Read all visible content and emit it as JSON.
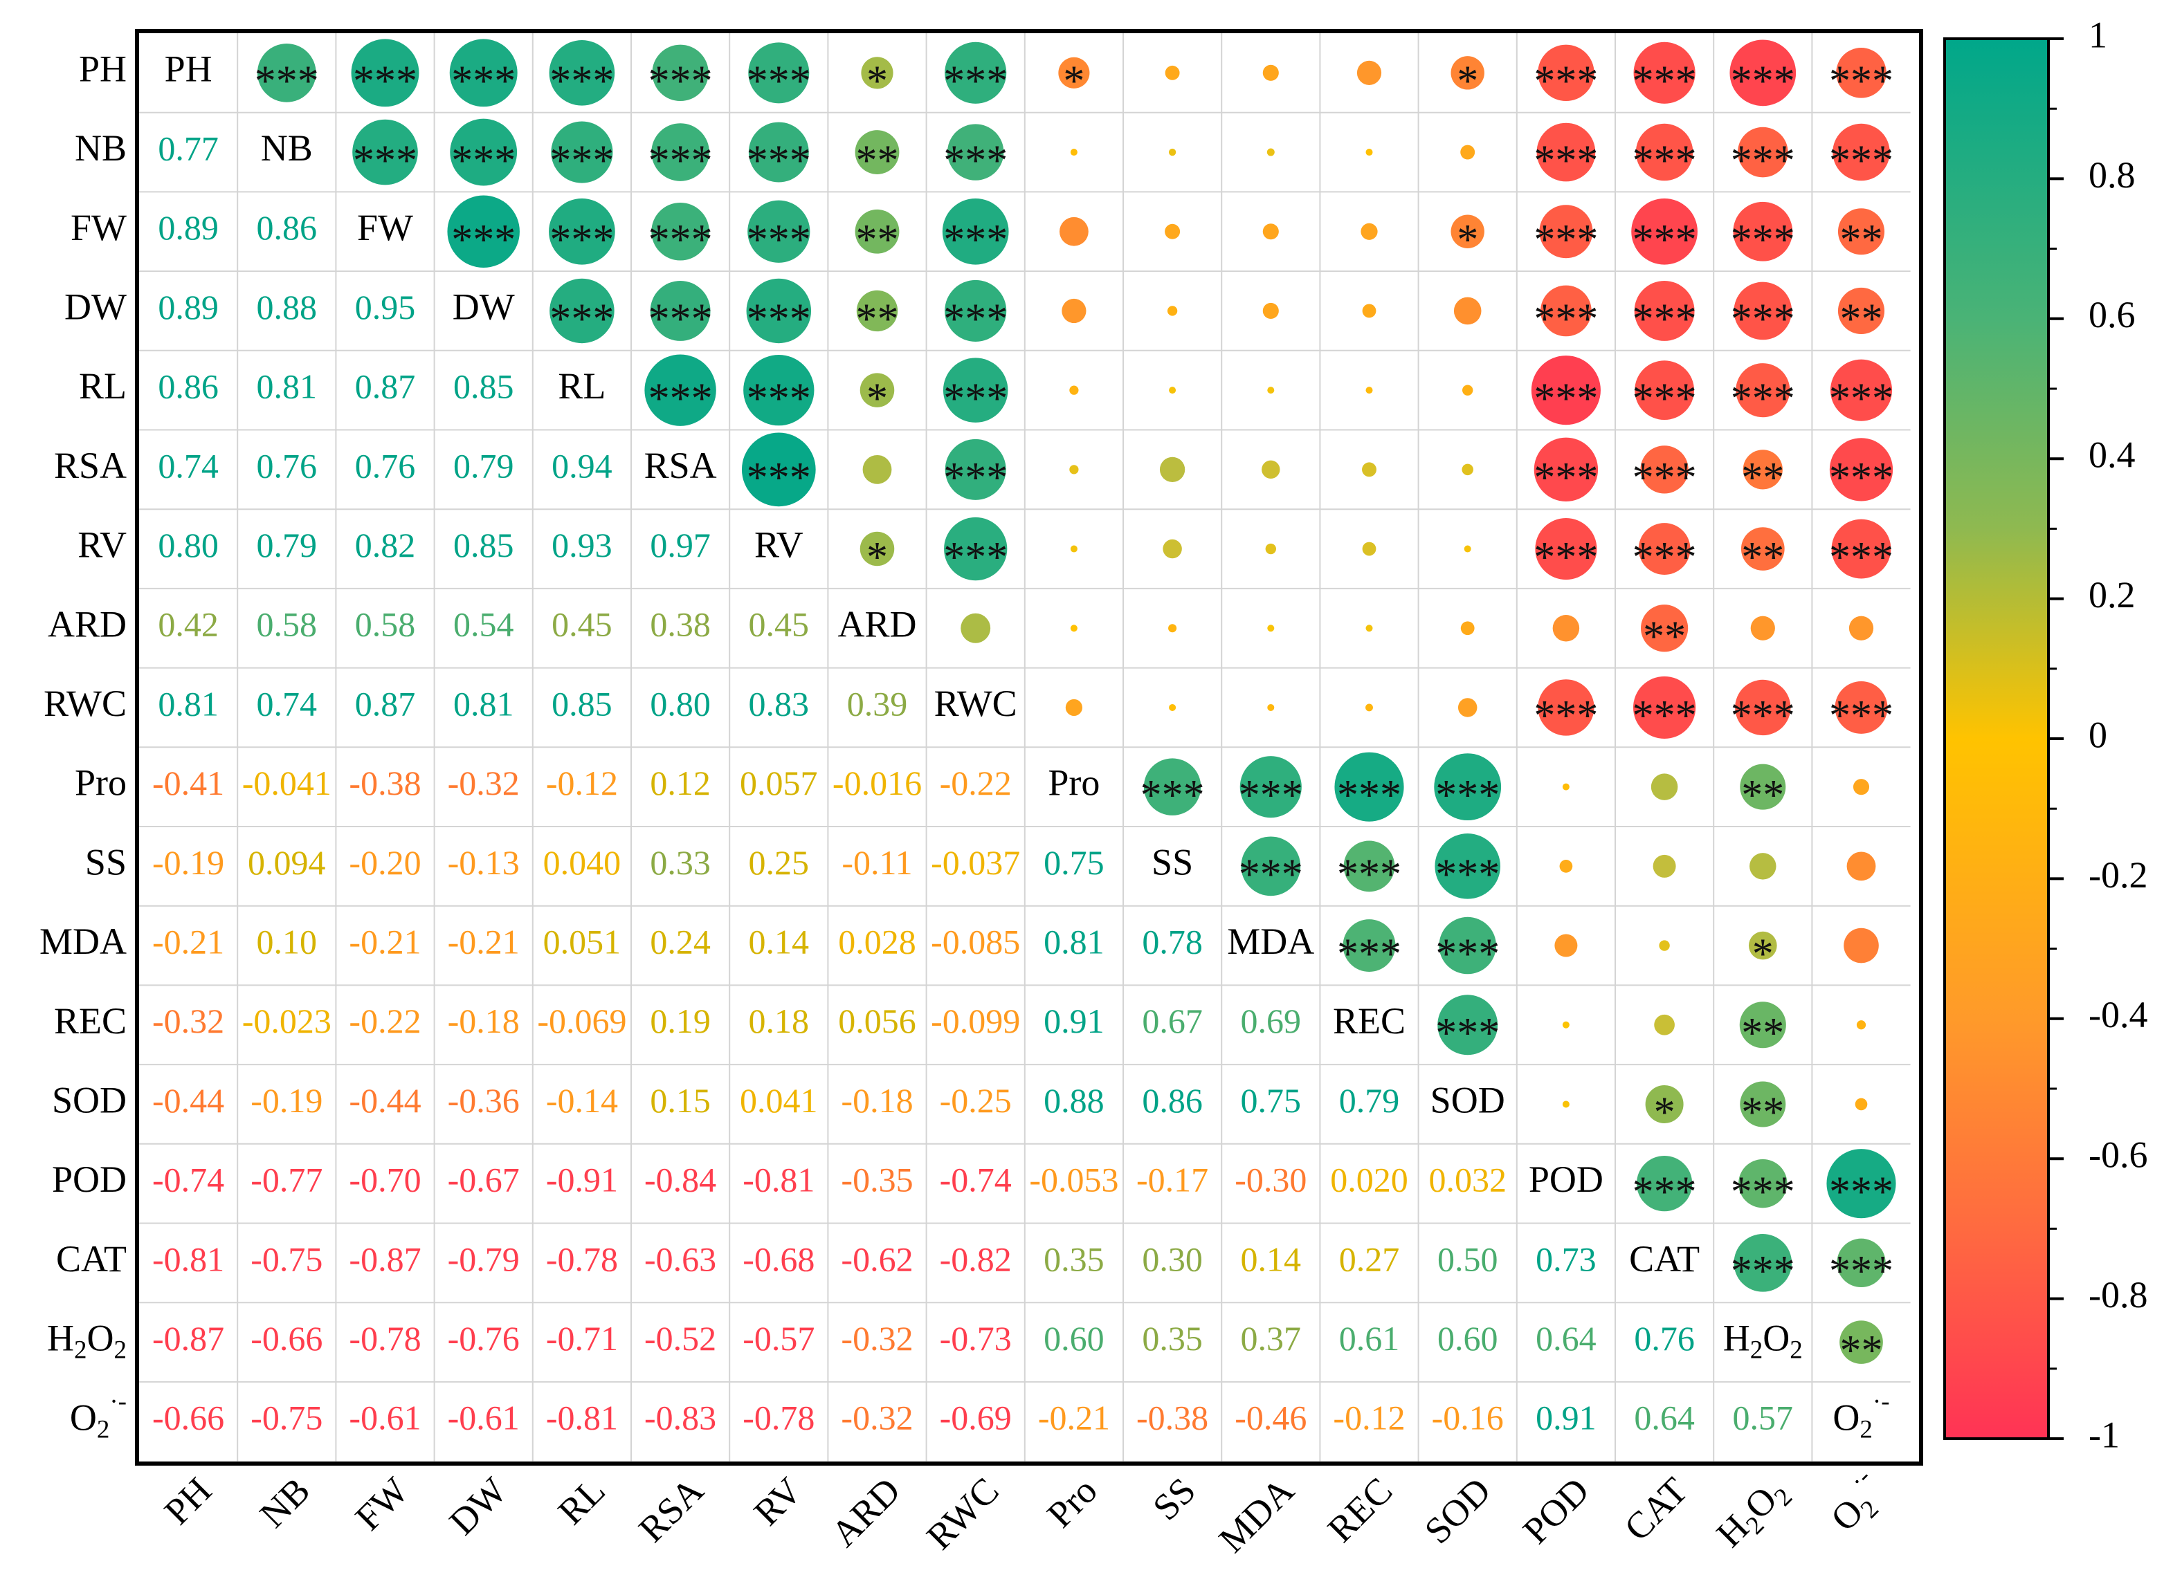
{
  "chart_data": {
    "type": "heatmap",
    "subtype": "correlation-matrix",
    "variables": [
      "PH",
      "NB",
      "FW",
      "DW",
      "RL",
      "RSA",
      "RV",
      "ARD",
      "RWC",
      "Pro",
      "SS",
      "MDA",
      "REC",
      "SOD",
      "POD",
      "CAT",
      "H2O2",
      "O2-"
    ],
    "variable_labels": [
      {
        "base": "PH"
      },
      {
        "base": "NB"
      },
      {
        "base": "FW"
      },
      {
        "base": "DW"
      },
      {
        "base": "RL"
      },
      {
        "base": "RSA"
      },
      {
        "base": "RV"
      },
      {
        "base": "ARD"
      },
      {
        "base": "RWC"
      },
      {
        "base": "Pro"
      },
      {
        "base": "SS"
      },
      {
        "base": "MDA"
      },
      {
        "base": "REC"
      },
      {
        "base": "SOD"
      },
      {
        "base": "POD"
      },
      {
        "base": "CAT"
      },
      {
        "base": "H",
        "sub1": "2",
        "mid": "O",
        "sub2": "2"
      },
      {
        "base": "O",
        "sub1": "2",
        "sup": "·-"
      }
    ],
    "lower_triangle_text": [
      [],
      [
        "0.77"
      ],
      [
        "0.89",
        "0.86"
      ],
      [
        "0.89",
        "0.88",
        "0.95"
      ],
      [
        "0.86",
        "0.81",
        "0.87",
        "0.85"
      ],
      [
        "0.74",
        "0.76",
        "0.76",
        "0.79",
        "0.94"
      ],
      [
        "0.80",
        "0.79",
        "0.82",
        "0.85",
        "0.93",
        "0.97"
      ],
      [
        "0.42",
        "0.58",
        "0.58",
        "0.54",
        "0.45",
        "0.38",
        "0.45"
      ],
      [
        "0.81",
        "0.74",
        "0.87",
        "0.81",
        "0.85",
        "0.80",
        "0.83",
        "0.39"
      ],
      [
        "-0.41",
        "-0.041",
        "-0.38",
        "-0.32",
        "-0.12",
        "0.12",
        "0.057",
        "-0.016",
        "-0.22"
      ],
      [
        "-0.19",
        "0.094",
        "-0.20",
        "-0.13",
        "0.040",
        "0.33",
        "0.25",
        "-0.11",
        "-0.037",
        "0.75"
      ],
      [
        "-0.21",
        "0.10",
        "-0.21",
        "-0.21",
        "0.051",
        "0.24",
        "0.14",
        "0.028",
        "-0.085",
        "0.81",
        "0.78"
      ],
      [
        "-0.32",
        "-0.023",
        "-0.22",
        "-0.18",
        "-0.069",
        "0.19",
        "0.18",
        "0.056",
        "-0.099",
        "0.91",
        "0.67",
        "0.69"
      ],
      [
        "-0.44",
        "-0.19",
        "-0.44",
        "-0.36",
        "-0.14",
        "0.15",
        "0.041",
        "-0.18",
        "-0.25",
        "0.88",
        "0.86",
        "0.75",
        "0.79"
      ],
      [
        "-0.74",
        "-0.77",
        "-0.70",
        "-0.67",
        "-0.91",
        "-0.84",
        "-0.81",
        "-0.35",
        "-0.74",
        "-0.053",
        "-0.17",
        "-0.30",
        "0.020",
        "0.032"
      ],
      [
        "-0.81",
        "-0.75",
        "-0.87",
        "-0.79",
        "-0.78",
        "-0.63",
        "-0.68",
        "-0.62",
        "-0.82",
        "0.35",
        "0.30",
        "0.14",
        "0.27",
        "0.50",
        "0.73"
      ],
      [
        "-0.87",
        "-0.66",
        "-0.78",
        "-0.76",
        "-0.71",
        "-0.52",
        "-0.57",
        "-0.32",
        "-0.73",
        "0.60",
        "0.35",
        "0.37",
        "0.61",
        "0.60",
        "0.64",
        "0.76"
      ],
      [
        "-0.66",
        "-0.75",
        "-0.61",
        "-0.61",
        "-0.81",
        "-0.83",
        "-0.78",
        "-0.32",
        "-0.69",
        "-0.21",
        "-0.38",
        "-0.46",
        "-0.12",
        "-0.16",
        "0.91",
        "0.64",
        "0.57"
      ]
    ],
    "upper_triangle_significance": [
      [
        "***",
        "***",
        "***",
        "***",
        "***",
        "***",
        "*",
        "***",
        "*",
        "",
        "",
        "",
        "*",
        "***",
        "***",
        "***",
        "***"
      ],
      [
        "***",
        "***",
        "***",
        "***",
        "***",
        "**",
        "***",
        "",
        "",
        "",
        "",
        "",
        "***",
        "***",
        "***",
        "***"
      ],
      [
        "***",
        "***",
        "***",
        "***",
        "**",
        "***",
        "",
        "",
        "",
        "",
        "*",
        "***",
        "***",
        "***",
        "**"
      ],
      [
        "***",
        "***",
        "***",
        "**",
        "***",
        "",
        "",
        "",
        "",
        "",
        "***",
        "***",
        "***",
        "**"
      ],
      [
        "***",
        "***",
        "*",
        "***",
        "",
        "",
        "",
        "",
        "",
        "***",
        "***",
        "***",
        "***"
      ],
      [
        "***",
        "",
        "***",
        "",
        "",
        "",
        "",
        "",
        "***",
        "***",
        "**",
        "***"
      ],
      [
        "*",
        "***",
        "",
        "",
        "",
        "",
        "",
        "***",
        "***",
        "**",
        "***"
      ],
      [
        "",
        "",
        "",
        "",
        "",
        "",
        "",
        "**",
        "",
        ""
      ],
      [
        "",
        "",
        "",
        "",
        "",
        "***",
        "***",
        "***",
        "***"
      ],
      [
        "***",
        "***",
        "***",
        "***",
        "",
        "",
        "**",
        ""
      ],
      [
        "***",
        "***",
        "***",
        "",
        "",
        "",
        ""
      ],
      [
        "***",
        "***",
        "",
        "",
        "*"
      ],
      [
        "***",
        "",
        "",
        "**",
        ""
      ],
      [
        "",
        "*",
        "**",
        ""
      ],
      [
        "***",
        "***",
        "***"
      ],
      [
        "***",
        "***"
      ],
      [
        "**"
      ]
    ],
    "colorbar": {
      "range": [
        -1,
        1
      ],
      "ticks": [
        "1",
        "0.8",
        "0.6",
        "0.4",
        "0.2",
        "0",
        "-0.2",
        "-0.4",
        "-0.6",
        "-0.8",
        "-1"
      ],
      "colors": {
        "positive_high": "#00a78a",
        "mid_pos": "#8cbb55",
        "zero": "#ffc300",
        "mid_neg": "#ff8a30",
        "negative_high": "#ff3355"
      }
    }
  }
}
